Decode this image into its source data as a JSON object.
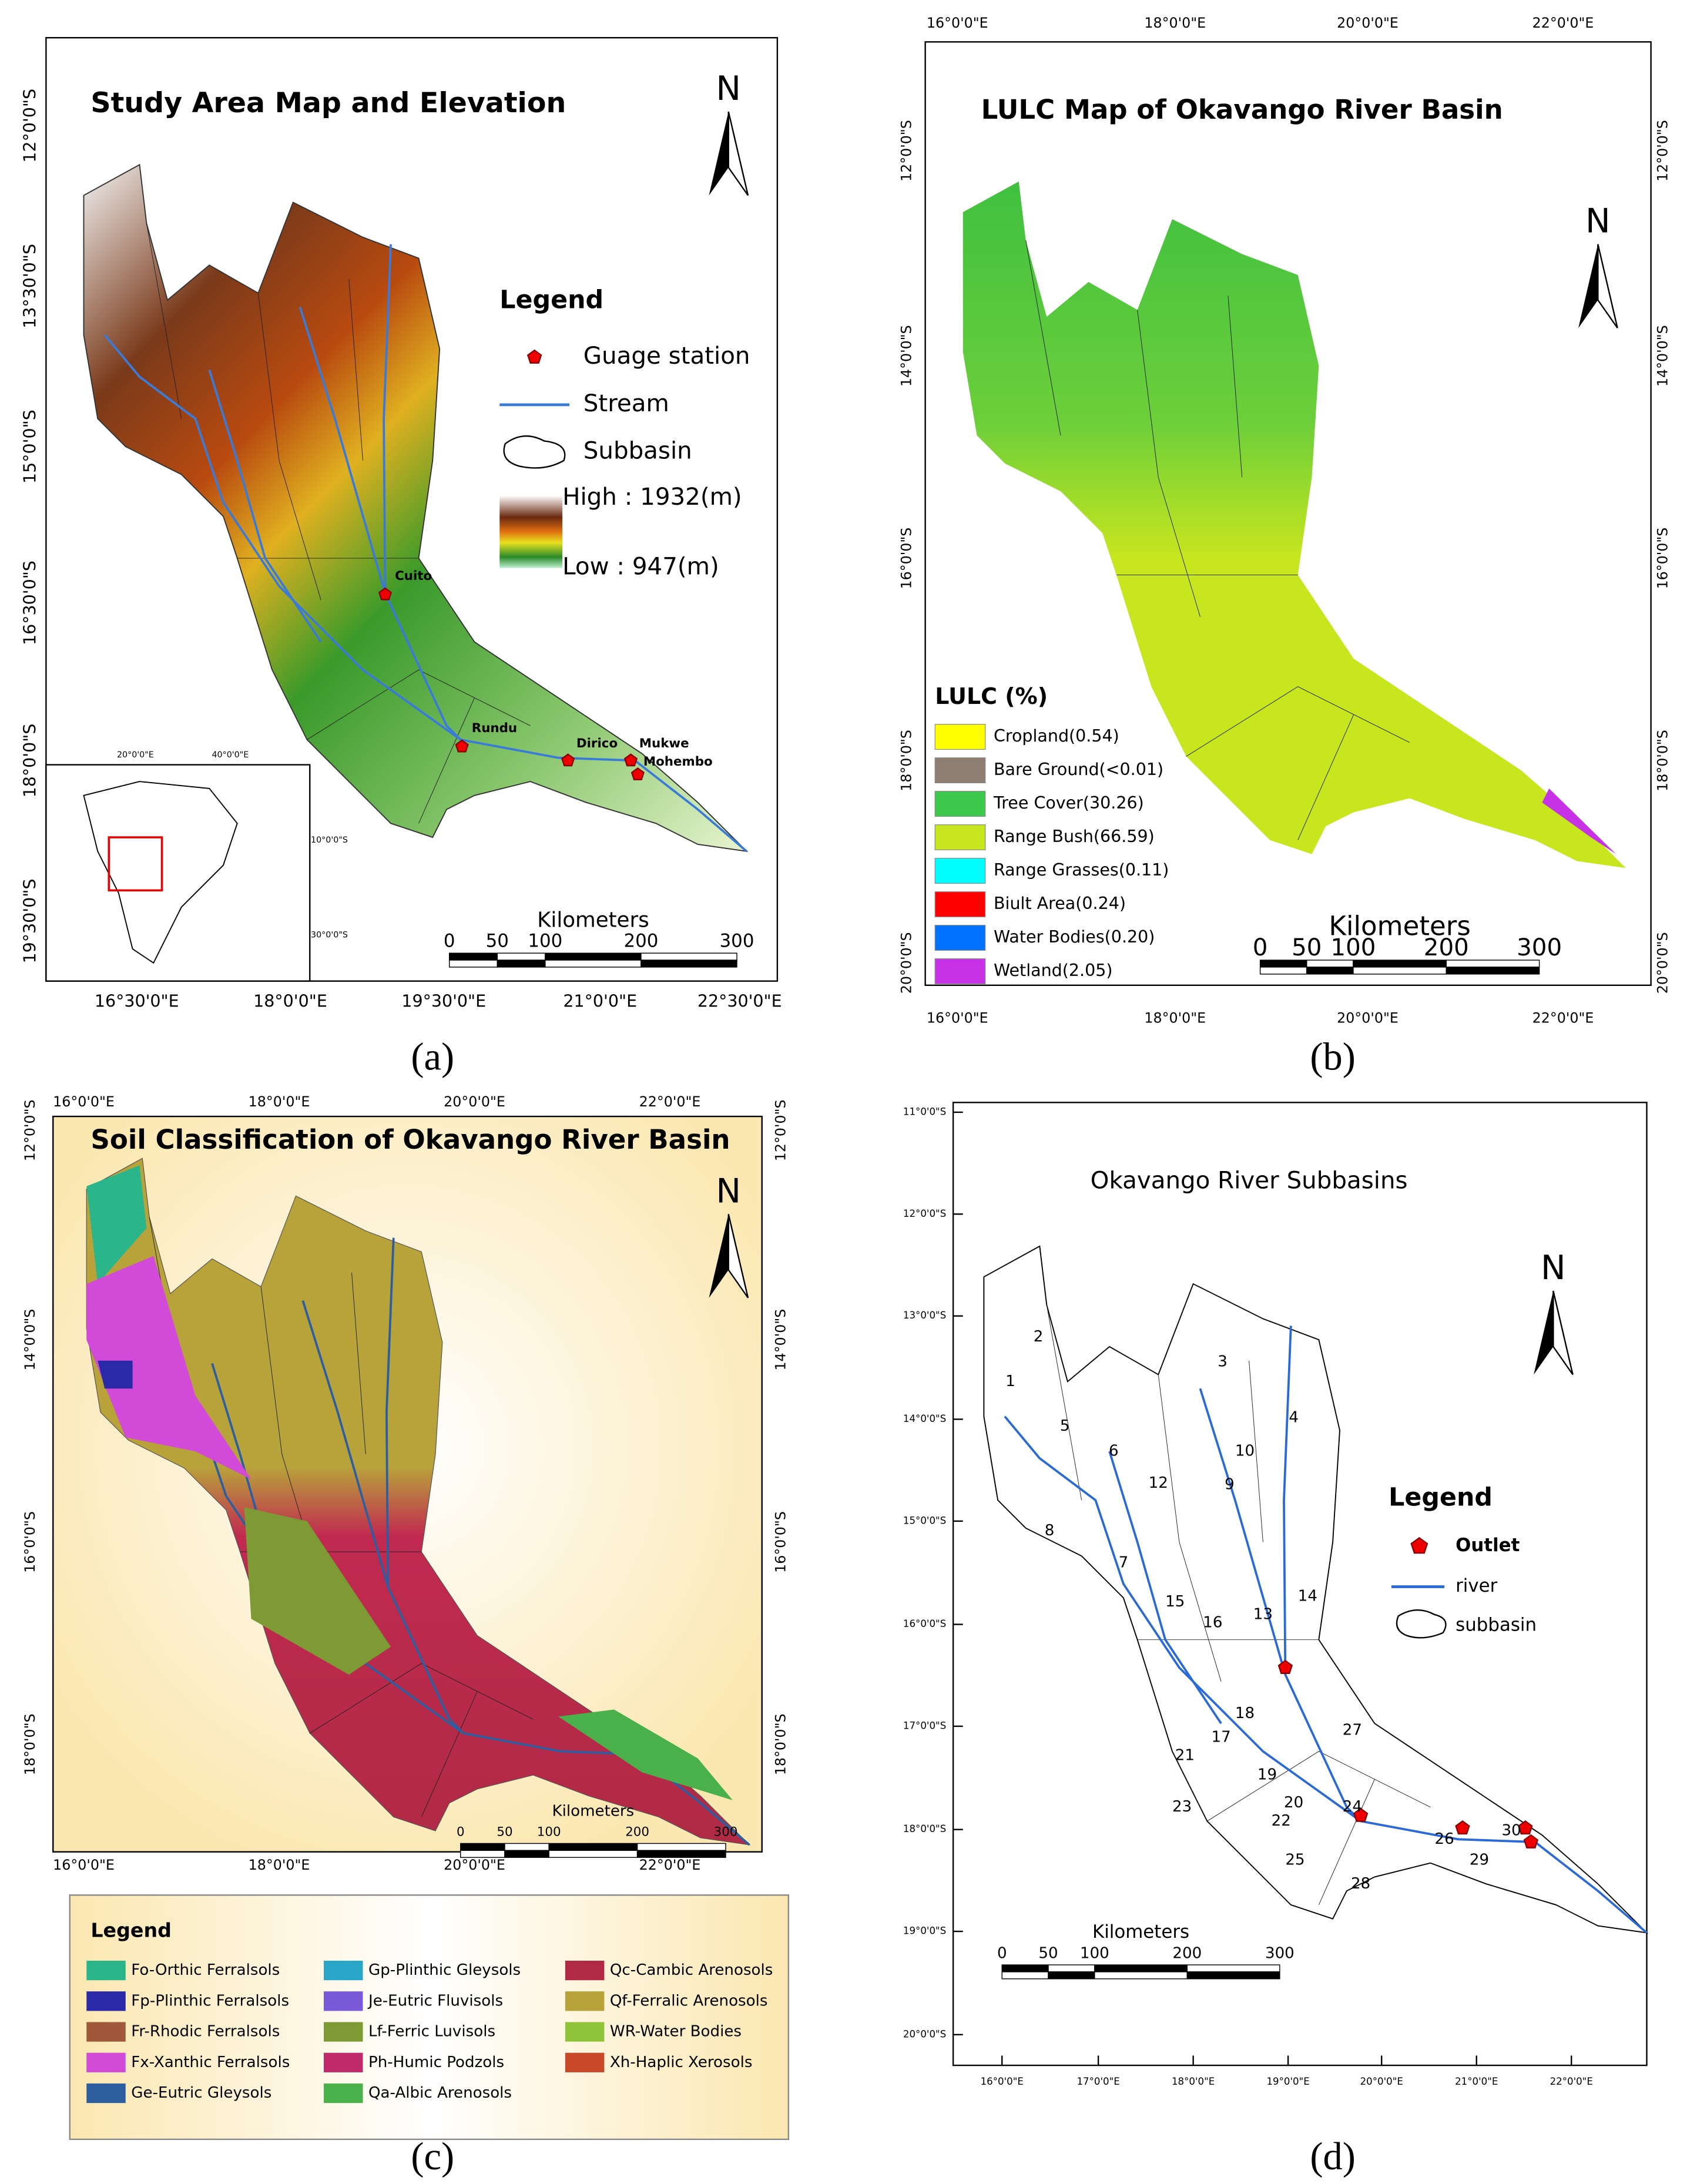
{
  "panels": {
    "a": {
      "title": "Study Area Map and Elevation",
      "caption": "(a)",
      "north": "N",
      "legend": {
        "title": "Legend",
        "items": [
          "Guage station",
          "Stream",
          "Subbasin"
        ],
        "high": "High : 1932(m)",
        "low": "Low : 947(m)"
      },
      "stations": [
        "Cuito",
        "Rundu",
        "Dirico",
        "Mukwe",
        "Mohembo"
      ],
      "scale": {
        "title": "Kilometers",
        "ticks": [
          0,
          50,
          100,
          200,
          300
        ]
      },
      "lat_labels": [
        "12°0'0\"S",
        "13°30'0\"S",
        "15°0'0\"S",
        "16°30'0\"S",
        "18°0'0\"S",
        "19°30'0\"S"
      ],
      "lon_labels": [
        "16°30'0\"E",
        "18°0'0\"E",
        "19°30'0\"E",
        "21°0'0\"E",
        "22°30'0\"E"
      ],
      "inset": {
        "lon_labels": [
          "20°0'0\"E",
          "40°0'0\"E"
        ],
        "lat_labels": [
          "10°0'0\"S",
          "30°0'0\"S"
        ]
      }
    },
    "b": {
      "title": "LULC Map of Okavango River Basin",
      "caption": "(b)",
      "north": "N",
      "legend": {
        "title": "LULC (%)",
        "items": [
          {
            "label": "Cropland(0.54)",
            "color": "#ffff00"
          },
          {
            "label": "Bare Ground(<0.01)",
            "color": "#8c7e70"
          },
          {
            "label": "Tree Cover(30.26)",
            "color": "#3cc84a"
          },
          {
            "label": "Range Bush(66.59)",
            "color": "#c8e61e"
          },
          {
            "label": "Range Grasses(0.11)",
            "color": "#00ffff"
          },
          {
            "label": "Biult Area(0.24)",
            "color": "#ff0000"
          },
          {
            "label": "Water Bodies(0.20)",
            "color": "#0070ff"
          },
          {
            "label": "Wetland(2.05)",
            "color": "#c832e6"
          }
        ]
      },
      "scale": {
        "title": "Kilometers",
        "ticks": [
          0,
          50,
          100,
          200,
          300
        ]
      },
      "lat_labels": [
        "12°0'0\"S",
        "14°0'0\"S",
        "16°0'0\"S",
        "18°0'0\"S",
        "20°0'0\"S"
      ],
      "lon_labels": [
        "16°0'0\"E",
        "18°0'0\"E",
        "20°0'0\"E",
        "22°0'0\"E"
      ]
    },
    "c": {
      "title": "Soil Classification of Okavango River Basin",
      "caption": "(c)",
      "north": "N",
      "legend": {
        "title": "Legend",
        "items": [
          {
            "label": "Fo-Orthic Ferralsols",
            "color": "#2bb58a"
          },
          {
            "label": "Fp-Plinthic Ferralsols",
            "color": "#2a2aa8"
          },
          {
            "label": "Fr-Rhodic Ferralsols",
            "color": "#a0583a"
          },
          {
            "label": "Fx-Xanthic Ferralsols",
            "color": "#d24ad8"
          },
          {
            "label": "Ge-Eutric Gleysols",
            "color": "#2d5fa0"
          },
          {
            "label": "Gp-Plinthic Gleysols",
            "color": "#2aa6c8"
          },
          {
            "label": "Je-Eutric Fluvisols",
            "color": "#7a5ad8"
          },
          {
            "label": "Lf-Ferric Luvisols",
            "color": "#7e9a35"
          },
          {
            "label": "Ph-Humic Podzols",
            "color": "#c02a6a"
          },
          {
            "label": "Qa-Albic Arenosols",
            "color": "#4ab04a"
          },
          {
            "label": "Qc-Cambic Arenosols",
            "color": "#b02a45"
          },
          {
            "label": "Qf-Ferralic Arenosols",
            "color": "#b8a23a"
          },
          {
            "label": "WR-Water Bodies",
            "color": "#8fc43a"
          },
          {
            "label": "Xh-Haplic Xerosols",
            "color": "#c8482a"
          }
        ]
      },
      "scale": {
        "title": "Kilometers",
        "ticks": [
          0,
          50,
          100,
          200,
          300
        ]
      },
      "lat_labels": [
        "12°0'0\"S",
        "14°0'0\"S",
        "16°0'0\"S",
        "18°0'0\"S"
      ],
      "lon_labels": [
        "16°0'0\"E",
        "18°0'0\"E",
        "20°0'0\"E",
        "22°0'0\"E"
      ]
    },
    "d": {
      "title": "Okavango River Subbasins",
      "caption": "(d)",
      "north": "N",
      "legend": {
        "title": "Legend",
        "items": [
          "Outlet",
          "river",
          "subbasin"
        ]
      },
      "subbasins": [
        1,
        2,
        3,
        4,
        5,
        6,
        7,
        8,
        9,
        10,
        12,
        13,
        14,
        15,
        16,
        17,
        18,
        19,
        20,
        21,
        22,
        23,
        24,
        25,
        26,
        27,
        28,
        29,
        30
      ],
      "scale": {
        "title": "Kilometers",
        "ticks": [
          0,
          50,
          100,
          200,
          300
        ]
      },
      "lat_labels": [
        "11°0'0\"S",
        "12°0'0\"S",
        "13°0'0\"S",
        "14°0'0\"S",
        "15°0'0\"S",
        "16°0'0\"S",
        "17°0'0\"S",
        "18°0'0\"S",
        "19°0'0\"S",
        "20°0'0\"S"
      ],
      "lon_labels": [
        "16°0'0\"E",
        "17°0'0\"E",
        "18°0'0\"E",
        "19°0'0\"E",
        "20°0'0\"E",
        "21°0'0\"E",
        "22°0'0\"E"
      ]
    }
  }
}
